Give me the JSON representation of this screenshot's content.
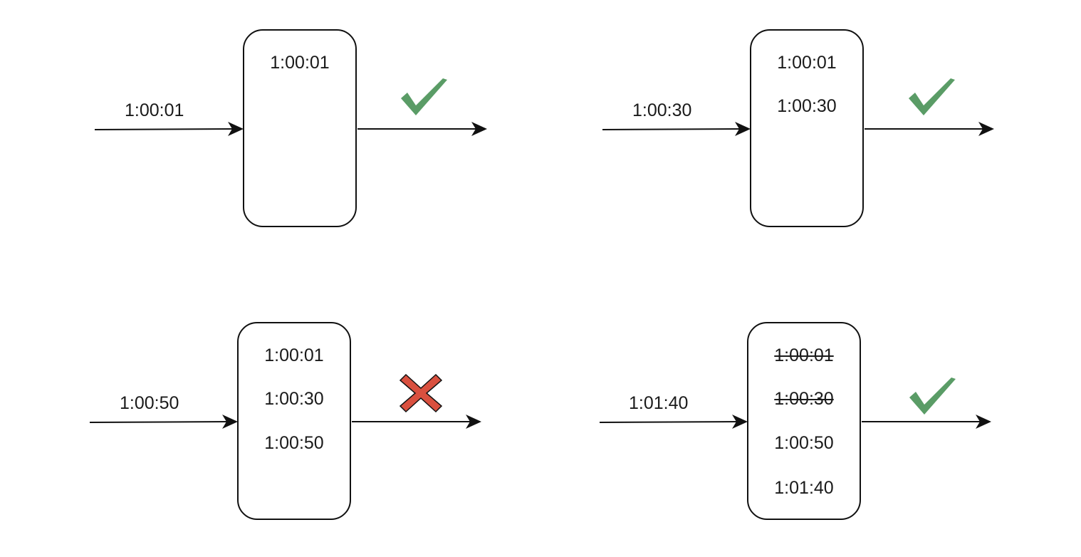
{
  "colors": {
    "accept": "#5a9c66",
    "reject": "#d9503f",
    "stroke": "#111111"
  },
  "panels": [
    {
      "incoming": "1:00:01",
      "entries": [
        {
          "time": "1:00:01",
          "expired": false
        }
      ],
      "status": "accepted",
      "status_icon": "checkmark-icon"
    },
    {
      "incoming": "1:00:30",
      "entries": [
        {
          "time": "1:00:01",
          "expired": false
        },
        {
          "time": "1:00:30",
          "expired": false
        }
      ],
      "status": "accepted",
      "status_icon": "checkmark-icon"
    },
    {
      "incoming": "1:00:50",
      "entries": [
        {
          "time": "1:00:01",
          "expired": false
        },
        {
          "time": "1:00:30",
          "expired": false
        },
        {
          "time": "1:00:50",
          "expired": false
        }
      ],
      "status": "rejected",
      "status_icon": "cross-icon"
    },
    {
      "incoming": "1:01:40",
      "entries": [
        {
          "time": "1:00:01",
          "expired": true
        },
        {
          "time": "1:00:30",
          "expired": true
        },
        {
          "time": "1:00:50",
          "expired": false
        },
        {
          "time": "1:01:40",
          "expired": false
        }
      ],
      "status": "accepted",
      "status_icon": "checkmark-icon"
    }
  ]
}
